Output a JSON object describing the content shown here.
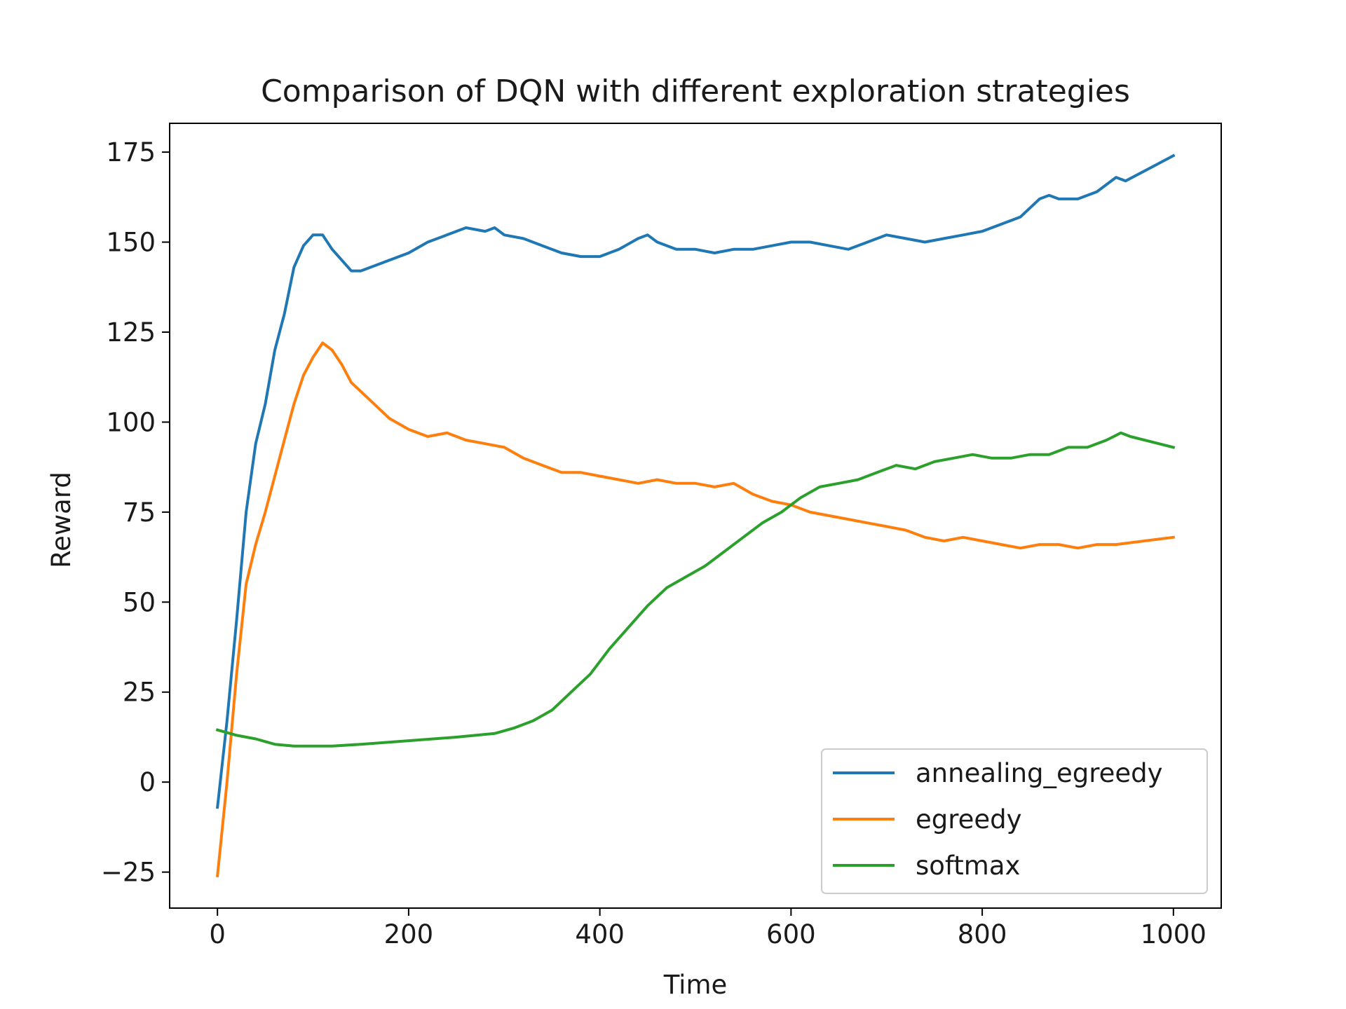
{
  "chart_data": {
    "type": "line",
    "title": "Comparison of DQN with different exploration strategies",
    "xlabel": "Time",
    "ylabel": "Reward",
    "xlim": [
      -50,
      1050
    ],
    "ylim": [
      -35,
      183
    ],
    "xticks": [
      0,
      200,
      400,
      600,
      800,
      1000
    ],
    "yticks": [
      -25,
      0,
      25,
      50,
      75,
      100,
      125,
      150,
      175
    ],
    "xtick_labels": [
      "0",
      "200",
      "400",
      "600",
      "800",
      "1000"
    ],
    "ytick_labels": [
      "−25",
      "0",
      "25",
      "50",
      "75",
      "100",
      "125",
      "150",
      "175"
    ],
    "grid": false,
    "legend_position": "lower-right",
    "series": [
      {
        "name": "annealing_egreedy",
        "color": "#1f77b4",
        "points": [
          [
            0,
            -7
          ],
          [
            10,
            17
          ],
          [
            20,
            45
          ],
          [
            30,
            75
          ],
          [
            40,
            94
          ],
          [
            50,
            105
          ],
          [
            60,
            120
          ],
          [
            70,
            130
          ],
          [
            80,
            143
          ],
          [
            90,
            149
          ],
          [
            100,
            152
          ],
          [
            110,
            152
          ],
          [
            120,
            148
          ],
          [
            130,
            145
          ],
          [
            140,
            142
          ],
          [
            150,
            142
          ],
          [
            160,
            143
          ],
          [
            170,
            144
          ],
          [
            180,
            145
          ],
          [
            190,
            146
          ],
          [
            200,
            147
          ],
          [
            220,
            150
          ],
          [
            240,
            152
          ],
          [
            260,
            154
          ],
          [
            280,
            153
          ],
          [
            290,
            154
          ],
          [
            300,
            152
          ],
          [
            320,
            151
          ],
          [
            340,
            149
          ],
          [
            360,
            147
          ],
          [
            380,
            146
          ],
          [
            400,
            146
          ],
          [
            420,
            148
          ],
          [
            440,
            151
          ],
          [
            450,
            152
          ],
          [
            460,
            150
          ],
          [
            480,
            148
          ],
          [
            500,
            148
          ],
          [
            520,
            147
          ],
          [
            540,
            148
          ],
          [
            560,
            148
          ],
          [
            580,
            149
          ],
          [
            600,
            150
          ],
          [
            620,
            150
          ],
          [
            640,
            149
          ],
          [
            660,
            148
          ],
          [
            680,
            150
          ],
          [
            700,
            152
          ],
          [
            720,
            151
          ],
          [
            740,
            150
          ],
          [
            760,
            151
          ],
          [
            780,
            152
          ],
          [
            800,
            153
          ],
          [
            820,
            155
          ],
          [
            840,
            157
          ],
          [
            860,
            162
          ],
          [
            870,
            163
          ],
          [
            880,
            162
          ],
          [
            900,
            162
          ],
          [
            920,
            164
          ],
          [
            940,
            168
          ],
          [
            950,
            167
          ],
          [
            1000,
            174
          ]
        ]
      },
      {
        "name": "egreedy",
        "color": "#ff7f0e",
        "points": [
          [
            0,
            -26
          ],
          [
            10,
            0
          ],
          [
            20,
            30
          ],
          [
            30,
            55
          ],
          [
            40,
            66
          ],
          [
            50,
            75
          ],
          [
            60,
            85
          ],
          [
            70,
            95
          ],
          [
            80,
            105
          ],
          [
            90,
            113
          ],
          [
            100,
            118
          ],
          [
            110,
            122
          ],
          [
            120,
            120
          ],
          [
            130,
            116
          ],
          [
            140,
            111
          ],
          [
            160,
            106
          ],
          [
            180,
            101
          ],
          [
            200,
            98
          ],
          [
            220,
            96
          ],
          [
            240,
            97
          ],
          [
            260,
            95
          ],
          [
            280,
            94
          ],
          [
            300,
            93
          ],
          [
            320,
            90
          ],
          [
            340,
            88
          ],
          [
            360,
            86
          ],
          [
            380,
            86
          ],
          [
            400,
            85
          ],
          [
            420,
            84
          ],
          [
            440,
            83
          ],
          [
            460,
            84
          ],
          [
            480,
            83
          ],
          [
            500,
            83
          ],
          [
            520,
            82
          ],
          [
            540,
            83
          ],
          [
            560,
            80
          ],
          [
            580,
            78
          ],
          [
            600,
            77
          ],
          [
            620,
            75
          ],
          [
            640,
            74
          ],
          [
            660,
            73
          ],
          [
            680,
            72
          ],
          [
            700,
            71
          ],
          [
            720,
            70
          ],
          [
            740,
            68
          ],
          [
            760,
            67
          ],
          [
            780,
            68
          ],
          [
            800,
            67
          ],
          [
            820,
            66
          ],
          [
            840,
            65
          ],
          [
            860,
            66
          ],
          [
            880,
            66
          ],
          [
            900,
            65
          ],
          [
            920,
            66
          ],
          [
            940,
            66
          ],
          [
            1000,
            68
          ]
        ]
      },
      {
        "name": "softmax",
        "color": "#2ca02c",
        "points": [
          [
            0,
            14.5
          ],
          [
            20,
            13
          ],
          [
            40,
            12
          ],
          [
            60,
            10.5
          ],
          [
            80,
            10
          ],
          [
            100,
            10
          ],
          [
            120,
            10
          ],
          [
            150,
            10.5
          ],
          [
            200,
            11.5
          ],
          [
            250,
            12.5
          ],
          [
            290,
            13.5
          ],
          [
            310,
            15
          ],
          [
            330,
            17
          ],
          [
            350,
            20
          ],
          [
            370,
            25
          ],
          [
            390,
            30
          ],
          [
            410,
            37
          ],
          [
            430,
            43
          ],
          [
            450,
            49
          ],
          [
            470,
            54
          ],
          [
            490,
            57
          ],
          [
            510,
            60
          ],
          [
            530,
            64
          ],
          [
            550,
            68
          ],
          [
            570,
            72
          ],
          [
            590,
            75
          ],
          [
            610,
            79
          ],
          [
            630,
            82
          ],
          [
            650,
            83
          ],
          [
            670,
            84
          ],
          [
            690,
            86
          ],
          [
            710,
            88
          ],
          [
            730,
            87
          ],
          [
            750,
            89
          ],
          [
            770,
            90
          ],
          [
            790,
            91
          ],
          [
            810,
            90
          ],
          [
            830,
            90
          ],
          [
            850,
            91
          ],
          [
            870,
            91
          ],
          [
            890,
            93
          ],
          [
            910,
            93
          ],
          [
            930,
            95
          ],
          [
            945,
            97
          ],
          [
            955,
            96
          ],
          [
            1000,
            93
          ]
        ]
      }
    ]
  }
}
